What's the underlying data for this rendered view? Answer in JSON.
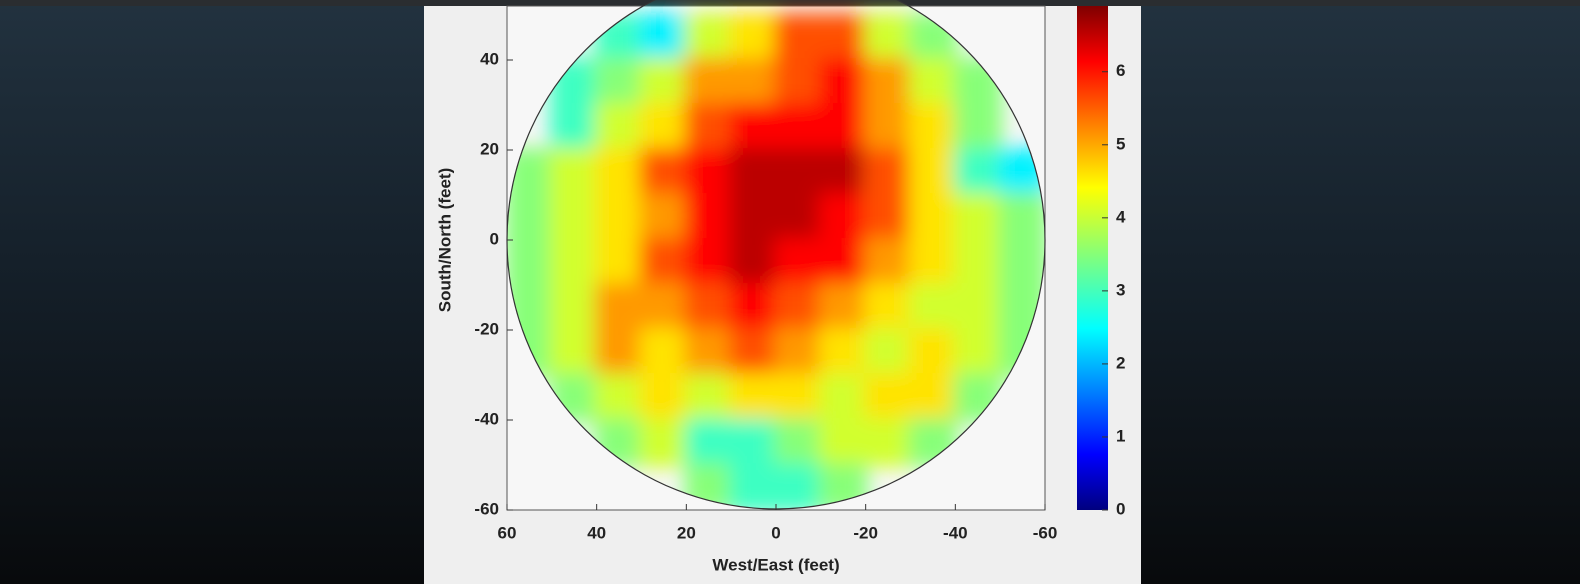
{
  "chart_data": {
    "type": "heatmap",
    "xlabel": "West/East (feet)",
    "ylabel": "South/North (feet)",
    "x": [
      55,
      45,
      35,
      25,
      15,
      5,
      -5,
      -15,
      -25,
      -35,
      -45,
      -55
    ],
    "y": [
      45,
      35,
      25,
      15,
      5,
      -5,
      -15,
      -25,
      -35,
      -45,
      -55
    ],
    "values": [
      [
        null,
        null,
        3,
        2.5,
        4,
        4.5,
        5.5,
        5.5,
        4,
        3.5,
        null,
        null
      ],
      [
        null,
        3,
        3.5,
        4,
        5,
        5,
        5.5,
        6,
        5,
        4,
        3.5,
        null
      ],
      [
        null,
        3,
        4,
        4.5,
        5.5,
        6,
        6,
        6,
        5,
        4.5,
        3.5,
        null
      ],
      [
        3.5,
        4,
        4.5,
        5.5,
        6,
        6.5,
        6.5,
        6.5,
        5.5,
        4.5,
        3,
        2.5
      ],
      [
        3.5,
        4,
        4.5,
        5,
        6,
        6.5,
        6.5,
        6,
        5.5,
        4.5,
        4,
        3.5
      ],
      [
        3.5,
        4,
        4.5,
        5.5,
        6,
        6.5,
        6,
        6,
        5,
        4.5,
        4,
        3.5
      ],
      [
        3.5,
        4,
        5,
        5,
        5.5,
        6,
        5.5,
        5,
        4.5,
        4,
        4,
        3.5
      ],
      [
        3.5,
        4,
        5,
        4.5,
        5,
        5.5,
        5,
        4.5,
        4,
        4.5,
        4,
        3.5
      ],
      [
        null,
        3.5,
        4,
        4.5,
        4,
        4.5,
        4.5,
        4,
        4.5,
        4.5,
        3.5,
        null
      ],
      [
        null,
        null,
        3.5,
        4,
        3,
        3,
        3.5,
        4,
        4,
        3.5,
        null,
        null
      ],
      [
        null,
        null,
        null,
        null,
        3.5,
        3,
        3,
        3.5,
        null,
        null,
        null,
        null
      ]
    ],
    "xlim": [
      60,
      -60
    ],
    "xticks": [
      60,
      40,
      20,
      0,
      -20,
      -40,
      -60
    ],
    "ylim": [
      -60,
      52
    ],
    "yticks": [
      -60,
      -40,
      -20,
      0,
      20,
      40
    ],
    "clim": [
      0,
      6.9
    ],
    "cticks": [
      0,
      1,
      2,
      3,
      4,
      5,
      6
    ],
    "colormap": "jet"
  }
}
